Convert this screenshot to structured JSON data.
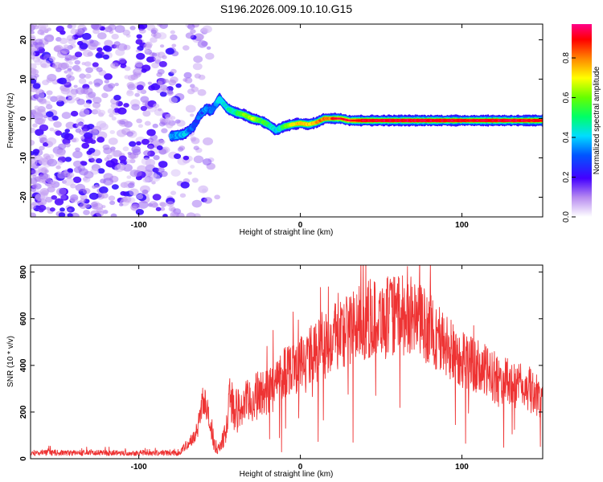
{
  "chart_data": [
    {
      "type": "heatmap",
      "title": "S196.2026.009.10.10.G15",
      "xlabel": "Height of straight line (km)",
      "ylabel": "Frequency (Hz)",
      "xlim": [
        -167,
        150
      ],
      "ylim": [
        -25,
        24
      ],
      "xticks": [
        -100,
        0,
        100
      ],
      "yticks": [
        -20,
        -10,
        0,
        10,
        20
      ],
      "colorbar": {
        "label": "Normalized spectral amplitude",
        "range": [
          0,
          0.97
        ],
        "ticks": [
          0.0,
          0.2,
          0.4,
          0.6,
          0.8
        ]
      },
      "ridge": {
        "x": [
          -80,
          -72,
          -66,
          -62,
          -58,
          -55,
          -50,
          -45,
          -40,
          -35,
          -30,
          -25,
          -20,
          -15,
          -10,
          -5,
          0,
          5,
          10,
          15,
          20,
          25,
          30,
          40,
          60,
          80,
          100,
          120,
          140,
          150
        ],
        "y": [
          -4.5,
          -4,
          -2,
          1,
          2.5,
          2,
          5,
          2.5,
          1.5,
          1,
          0,
          -0.5,
          -1.5,
          -3,
          -2,
          -1.5,
          -1.2,
          -1.5,
          -1,
          0,
          0,
          0,
          -0.5,
          -0.5,
          -0.5,
          -0.5,
          -0.5,
          -0.5,
          -0.5,
          -0.5
        ],
        "amplitude": [
          0.35,
          0.4,
          0.3,
          0.3,
          0.35,
          0.3,
          0.45,
          0.45,
          0.5,
          0.6,
          0.7,
          0.6,
          0.55,
          0.4,
          0.55,
          0.7,
          0.8,
          0.75,
          0.8,
          0.85,
          0.85,
          0.7,
          0.75,
          0.9,
          0.95,
          0.95,
          0.9,
          0.92,
          0.9,
          0.88
        ]
      },
      "noise_region": [
        -167,
        -55
      ]
    },
    {
      "type": "line",
      "xlabel": "Height of straight line (km)",
      "ylabel": "SNR (10 * v/v)",
      "xlim": [
        -167,
        150
      ],
      "ylim": [
        0,
        830
      ],
      "xticks": [
        -100,
        0,
        100
      ],
      "yticks": [
        0,
        200,
        400,
        600,
        800
      ],
      "series": [
        {
          "name": "SNR",
          "color": "#ee3333",
          "x": [
            -167,
            -150,
            -130,
            -110,
            -90,
            -75,
            -70,
            -66,
            -63,
            -60,
            -57,
            -54,
            -50,
            -46,
            -43,
            -40,
            -35,
            -30,
            -25,
            -20,
            -15,
            -10,
            -5,
            0,
            10,
            20,
            30,
            40,
            50,
            60,
            70,
            80,
            90,
            100,
            110,
            120,
            130,
            140,
            150
          ],
          "y": [
            25,
            25,
            25,
            25,
            25,
            25,
            60,
            90,
            150,
            270,
            180,
            60,
            40,
            120,
            280,
            200,
            230,
            250,
            280,
            290,
            320,
            380,
            400,
            410,
            460,
            520,
            560,
            590,
            610,
            620,
            610,
            560,
            480,
            430,
            390,
            350,
            320,
            300,
            260
          ],
          "spread": [
            15,
            15,
            15,
            15,
            15,
            15,
            30,
            40,
            60,
            90,
            80,
            40,
            30,
            60,
            150,
            120,
            120,
            130,
            130,
            130,
            140,
            150,
            150,
            150,
            170,
            190,
            200,
            210,
            210,
            210,
            210,
            200,
            180,
            160,
            150,
            140,
            130,
            120,
            110
          ]
        }
      ]
    }
  ],
  "colors": {
    "frame": "#000000",
    "line": "#ee3333",
    "noise_light": "#d9c2f5",
    "noise_dark": "#6a0ad8"
  }
}
